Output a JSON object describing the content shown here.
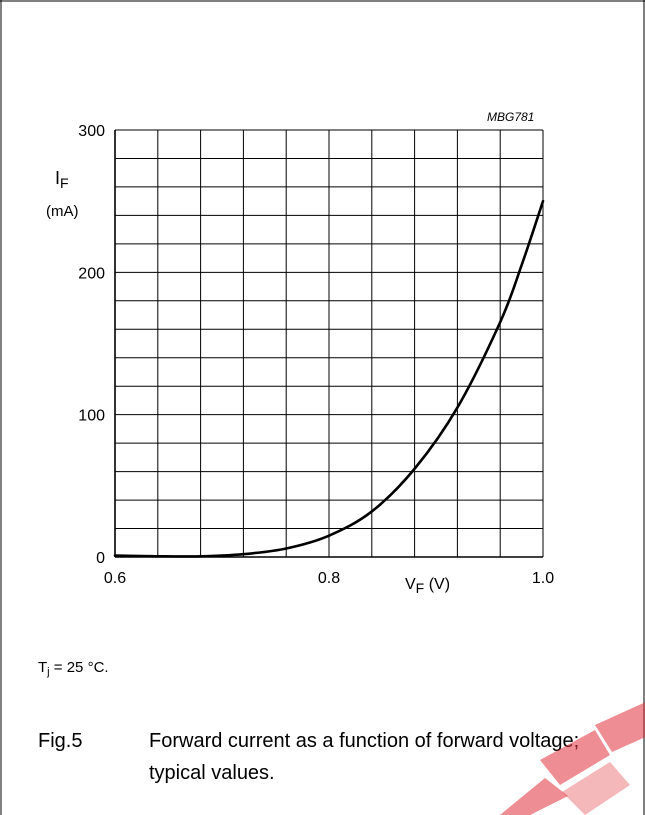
{
  "drawing_id": "MBG781",
  "condition": {
    "prefix": "T",
    "subscript": "j",
    "suffix": " = 25 °C."
  },
  "caption": {
    "number": "Fig.5",
    "text": "Forward current as a function of forward voltage; typical values."
  },
  "y_axis_label": {
    "symbol": "I",
    "subscript": "F",
    "unit": "(mA)"
  },
  "x_axis_label": {
    "symbol": "V",
    "subscript": "F",
    "unit": "(V)"
  },
  "chart_data": {
    "type": "line",
    "title": "",
    "xlabel": "VF (V)",
    "ylabel": "IF (mA)",
    "xlim": [
      0.6,
      1.0
    ],
    "ylim": [
      0,
      300
    ],
    "x_ticks": [
      "0.6",
      "0.8",
      "1.0"
    ],
    "y_ticks": [
      "0",
      "100",
      "200",
      "300"
    ],
    "grid": true,
    "grid_x_step": 0.04,
    "grid_y_step": 20,
    "series": [
      {
        "x": [
          0.6,
          0.64,
          0.68,
          0.72,
          0.76,
          0.8,
          0.84,
          0.88,
          0.92,
          0.96,
          0.98,
          1.0
        ],
        "y": [
          1,
          0.5,
          0.5,
          2,
          6,
          15,
          32,
          62,
          105,
          165,
          205,
          250
        ]
      }
    ],
    "line_color": "#000000"
  }
}
